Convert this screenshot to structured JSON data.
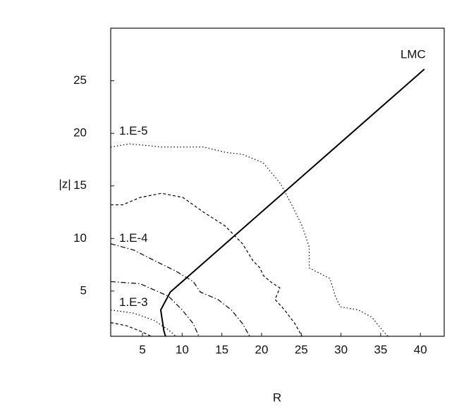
{
  "chart_data": {
    "type": "line",
    "x_label": "R",
    "y_label": "|z|",
    "xlim": [
      1,
      43
    ],
    "ylim": [
      0.7,
      30
    ],
    "xticks": [
      5,
      10,
      15,
      20,
      25,
      30,
      35,
      40
    ],
    "yticks": [
      5,
      10,
      15,
      20,
      25
    ],
    "grid": false,
    "series": [
      {
        "name": "LMC",
        "color": "#000000",
        "dash": "solid",
        "x": [
          40.5,
          8.5,
          7.3,
          7.7,
          7.9
        ],
        "values": [
          26.1,
          4.9,
          3.2,
          1.2,
          0.7
        ]
      },
      {
        "name": "1.E-5",
        "color": "#000000",
        "dash": "dotted",
        "x": [
          1,
          3.4,
          7.4,
          12.7,
          15.4,
          17.6,
          20.2,
          22.4,
          23.8,
          25.1,
          26,
          26,
          28.6,
          29.3,
          29.9,
          32.2,
          33.9,
          35.3,
          35.9
        ],
        "values": [
          18.7,
          19,
          18.7,
          18.7,
          18.2,
          18,
          17.2,
          15.2,
          13.2,
          11.2,
          9.2,
          7.2,
          6.2,
          4.5,
          3.5,
          3.2,
          2.5,
          1.2,
          0.7
        ]
      },
      {
        "color": "#000000",
        "dash": "dashed",
        "x": [
          1,
          2.5,
          4.7,
          7.4,
          10.1,
          12.7,
          15.4,
          17.6,
          18.9,
          19.8,
          20.2,
          21.1,
          22.3,
          21.7,
          22.9,
          24.2,
          25.1
        ],
        "values": [
          13.2,
          13.2,
          13.9,
          14.3,
          13.9,
          12.5,
          11.2,
          9.5,
          7.9,
          7.2,
          6.5,
          5.9,
          5.3,
          4.2,
          3.2,
          1.9,
          0.7
        ]
      },
      {
        "name": "1.E-4",
        "color": "#000000",
        "dash": "dashdot",
        "x": [
          1,
          3.9,
          6.5,
          9.2,
          11.4,
          12.3,
          14.5,
          16.2,
          17.6,
          18.5
        ],
        "values": [
          9.5,
          8.9,
          7.9,
          6.9,
          5.9,
          4.9,
          4.2,
          3.2,
          1.9,
          0.7
        ]
      },
      {
        "color": "#000000",
        "dash": "dashdot",
        "x": [
          1,
          4.7,
          8.3,
          10,
          11.4,
          12.1
        ],
        "values": [
          5.9,
          5.7,
          4.5,
          3.2,
          1.9,
          0.7
        ]
      },
      {
        "name": "1.E-3",
        "color": "#000000",
        "dash": "dotted",
        "x": [
          1,
          3.9,
          6.5,
          8.3,
          9.2
        ],
        "values": [
          3.2,
          2.9,
          2.2,
          1.3,
          0.7
        ]
      },
      {
        "color": "#000000",
        "dash": "dashed",
        "x": [
          1,
          3,
          4.7,
          6.1
        ],
        "values": [
          2,
          1.7,
          1.2,
          0.7
        ]
      }
    ]
  }
}
